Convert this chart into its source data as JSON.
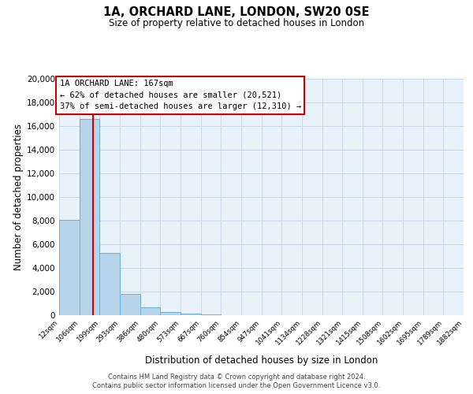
{
  "title": "1A, ORCHARD LANE, LONDON, SW20 0SE",
  "subtitle": "Size of property relative to detached houses in London",
  "xlabel": "Distribution of detached houses by size in London",
  "ylabel": "Number of detached properties",
  "bar_color": "#b8d4ea",
  "bar_edge_color": "#6aaed6",
  "bg_color": "#e8f2fa",
  "grid_color": "#c8d8e8",
  "vline_x": 167,
  "vline_color": "#cc0000",
  "annotation_title": "1A ORCHARD LANE: 167sqm",
  "annotation_line1": "← 62% of detached houses are smaller (20,521)",
  "annotation_line2": "37% of semi-detached houses are larger (12,310) →",
  "bins": [
    12,
    106,
    199,
    293,
    386,
    480,
    573,
    667,
    760,
    854,
    947,
    1041,
    1134,
    1228,
    1321,
    1415,
    1508,
    1602,
    1695,
    1789,
    1882
  ],
  "counts": [
    8100,
    16600,
    5300,
    1800,
    700,
    300,
    150,
    100,
    0,
    0,
    0,
    0,
    0,
    0,
    0,
    0,
    0,
    0,
    0,
    0
  ],
  "ylim": [
    0,
    20000
  ],
  "yticks": [
    0,
    2000,
    4000,
    6000,
    8000,
    10000,
    12000,
    14000,
    16000,
    18000,
    20000
  ],
  "footer1": "Contains HM Land Registry data © Crown copyright and database right 2024.",
  "footer2": "Contains public sector information licensed under the Open Government Licence v3.0."
}
